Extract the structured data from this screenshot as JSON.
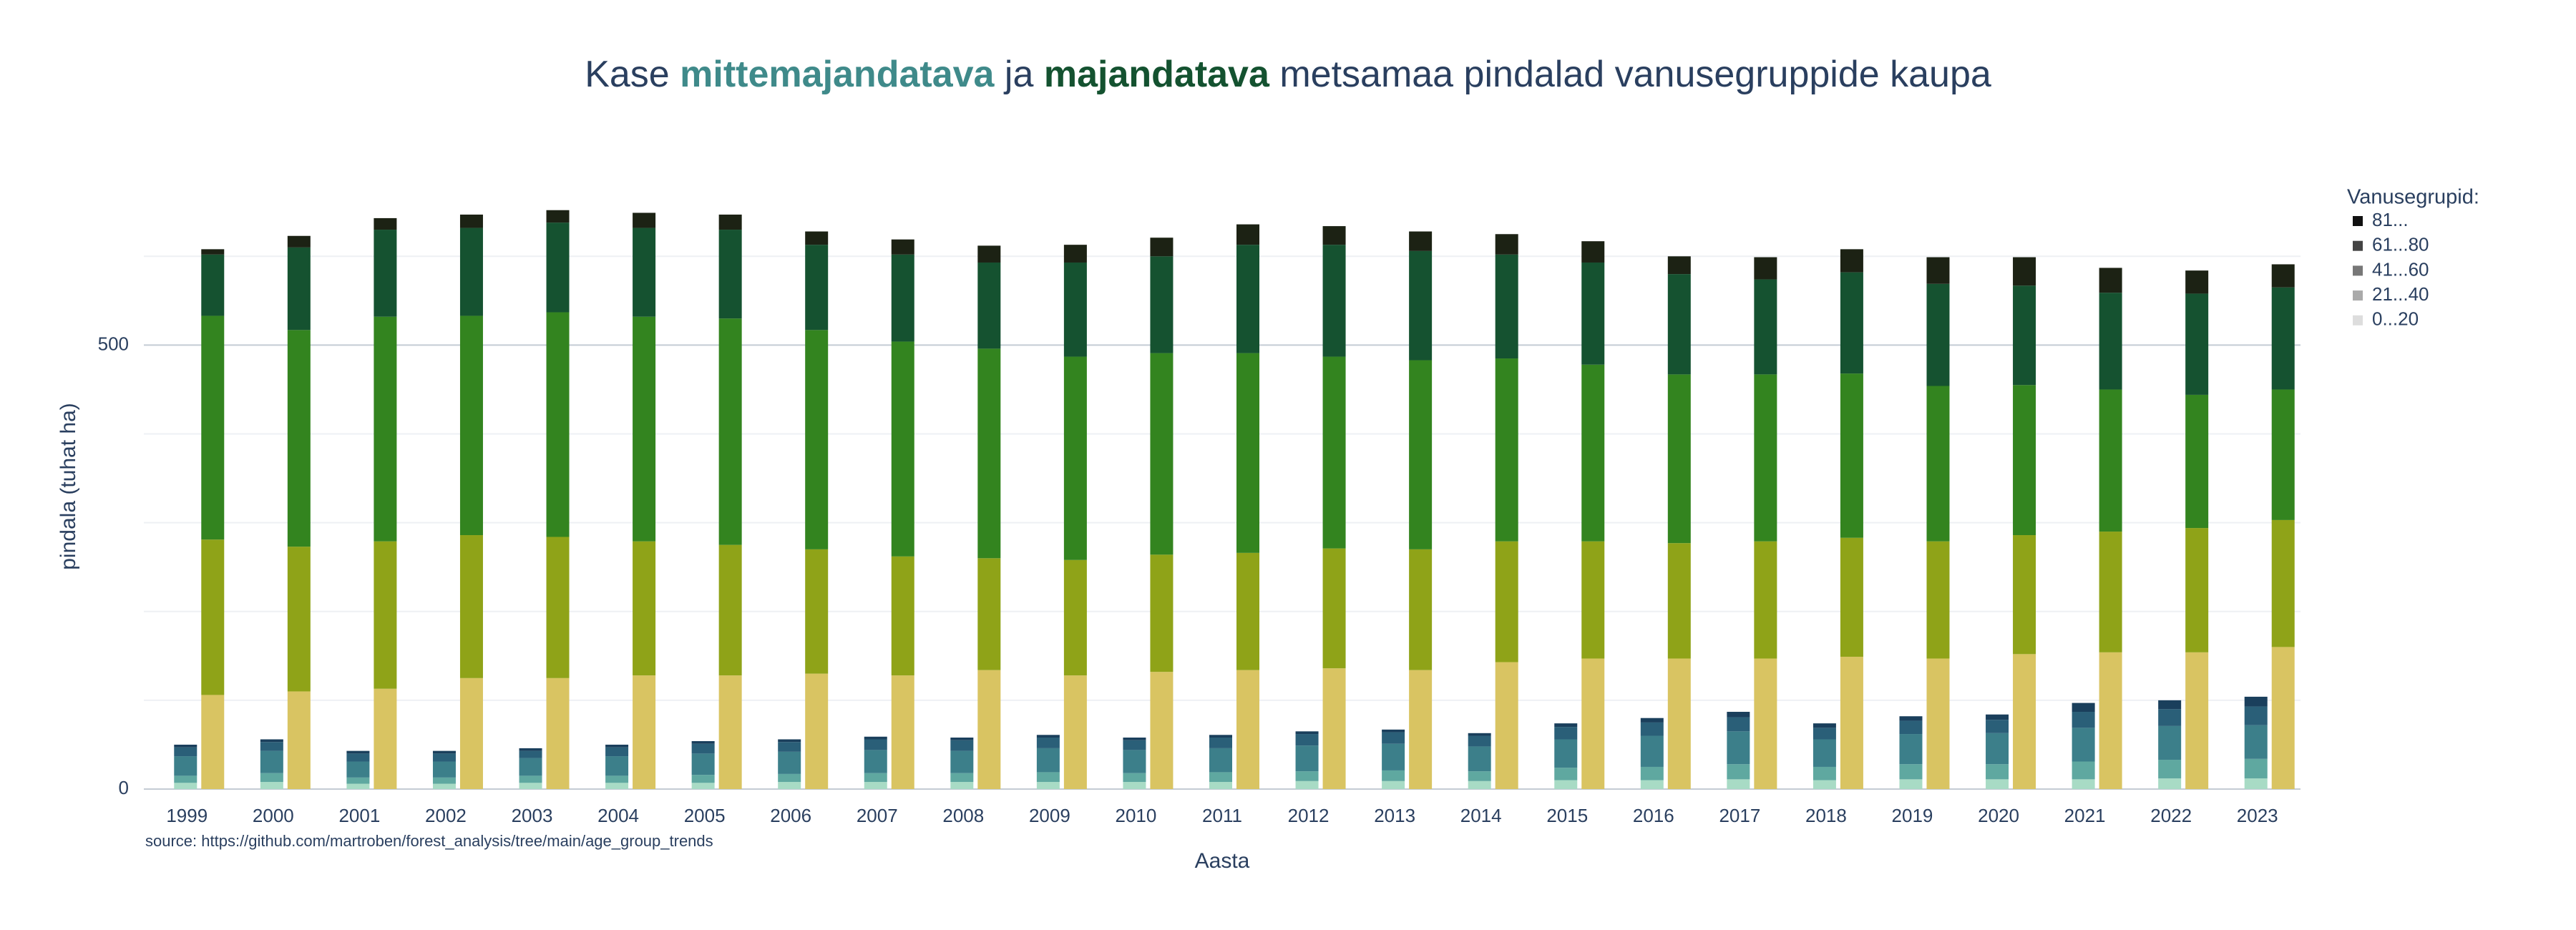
{
  "chart_data": {
    "type": "bar",
    "title_parts": [
      {
        "text": "Kase "
      },
      {
        "text": "mittemajandatava",
        "color": "#3f8a8a",
        "bold": true
      },
      {
        "text": " ja "
      },
      {
        "text": "majandatava",
        "color": "#145230",
        "bold": true
      },
      {
        "text": " metsamaa pindalad vanusegruppide kaupa"
      }
    ],
    "x_label": "Aasta",
    "y_label": "pindala (tuhat ha)",
    "source": "source: https://github.com/martroben/forest_analysis/tree/main/age_group_trends",
    "legend_title": "Vanusegrupid:",
    "stacks": [
      "mittemajandatava",
      "majandatava"
    ],
    "categories": [
      "1999",
      "2000",
      "2001",
      "2002",
      "2003",
      "2004",
      "2005",
      "2006",
      "2007",
      "2008",
      "2009",
      "2010",
      "2011",
      "2012",
      "2013",
      "2014",
      "2015",
      "2016",
      "2017",
      "2018",
      "2019",
      "2020",
      "2021",
      "2022",
      "2023"
    ],
    "series": [
      {
        "name": "0...20",
        "color": "#dddddd",
        "colors": {
          "mittemajandatava": "#a8dbc5",
          "majandatava": "#d9c462"
        },
        "values": {
          "mittemajandatava": [
            7,
            8,
            6,
            6,
            7,
            7,
            7,
            8,
            8,
            8,
            8,
            8,
            8,
            9,
            9,
            9,
            10,
            10,
            11,
            10,
            11,
            11,
            11,
            12,
            12
          ],
          "majandatava": [
            106,
            110,
            113,
            125,
            125,
            128,
            128,
            130,
            128,
            134,
            128,
            132,
            134,
            136,
            134,
            143,
            147,
            147,
            147,
            149,
            147,
            152,
            154,
            154,
            160
          ]
        }
      },
      {
        "name": "21...40",
        "color": "#aaaaaa",
        "colors": {
          "mittemajandatava": "#5fa8a0",
          "majandatava": "#8fa318"
        },
        "values": {
          "mittemajandatava": [
            8,
            10,
            7,
            7,
            8,
            8,
            9,
            9,
            10,
            10,
            11,
            10,
            11,
            11,
            12,
            11,
            14,
            15,
            17,
            15,
            17,
            17,
            20,
            21,
            22
          ],
          "majandatava": [
            175,
            163,
            166,
            161,
            159,
            151,
            147,
            140,
            134,
            126,
            130,
            132,
            132,
            135,
            136,
            136,
            132,
            130,
            132,
            134,
            132,
            134,
            136,
            140,
            143
          ]
        }
      },
      {
        "name": "41...60",
        "color": "#777777",
        "colors": {
          "mittemajandatava": "#3c7f8a",
          "majandatava": "#33841f"
        },
        "values": {
          "mittemajandatava": [
            22,
            25,
            18,
            18,
            20,
            22,
            24,
            25,
            26,
            25,
            27,
            26,
            27,
            29,
            30,
            28,
            32,
            35,
            37,
            31,
            34,
            35,
            38,
            38,
            38
          ],
          "majandatava": [
            252,
            244,
            253,
            247,
            253,
            253,
            255,
            247,
            242,
            236,
            229,
            227,
            225,
            216,
            213,
            206,
            199,
            190,
            188,
            185,
            175,
            169,
            160,
            150,
            147
          ]
        }
      },
      {
        "name": "61...80",
        "color": "#444444",
        "colors": {
          "mittemajandatava": "#2a5f78",
          "majandatava": "#155230"
        },
        "values": {
          "mittemajandatava": [
            10,
            10,
            9,
            9,
            8,
            10,
            11,
            11,
            12,
            12,
            12,
            11,
            12,
            13,
            13,
            12,
            14,
            15,
            16,
            13,
            15,
            15,
            18,
            19,
            21
          ],
          "majandatava": [
            69,
            93,
            98,
            99,
            101,
            100,
            100,
            96,
            98,
            97,
            106,
            109,
            122,
            126,
            123,
            117,
            115,
            113,
            107,
            114,
            115,
            112,
            109,
            114,
            115
          ]
        }
      },
      {
        "name": "81...",
        "color": "#111111",
        "colors": {
          "mittemajandatava": "#1a3f5c",
          "majandatava": "#1c2214"
        },
        "values": {
          "mittemajandatava": [
            3,
            3,
            3,
            3,
            3,
            3,
            3,
            3,
            3,
            3,
            3,
            3,
            3,
            3,
            3,
            3,
            4,
            5,
            6,
            5,
            5,
            6,
            10,
            10,
            11
          ],
          "majandatava": [
            6,
            13,
            13,
            15,
            14,
            17,
            17,
            15,
            17,
            19,
            20,
            21,
            23,
            21,
            22,
            23,
            24,
            20,
            25,
            26,
            30,
            32,
            28,
            26,
            26
          ]
        }
      }
    ],
    "ylim": [
      0,
      680
    ],
    "yticks": [
      0,
      500
    ],
    "minor_yticks": [
      100,
      200,
      300,
      400,
      600
    ],
    "grid": true
  }
}
